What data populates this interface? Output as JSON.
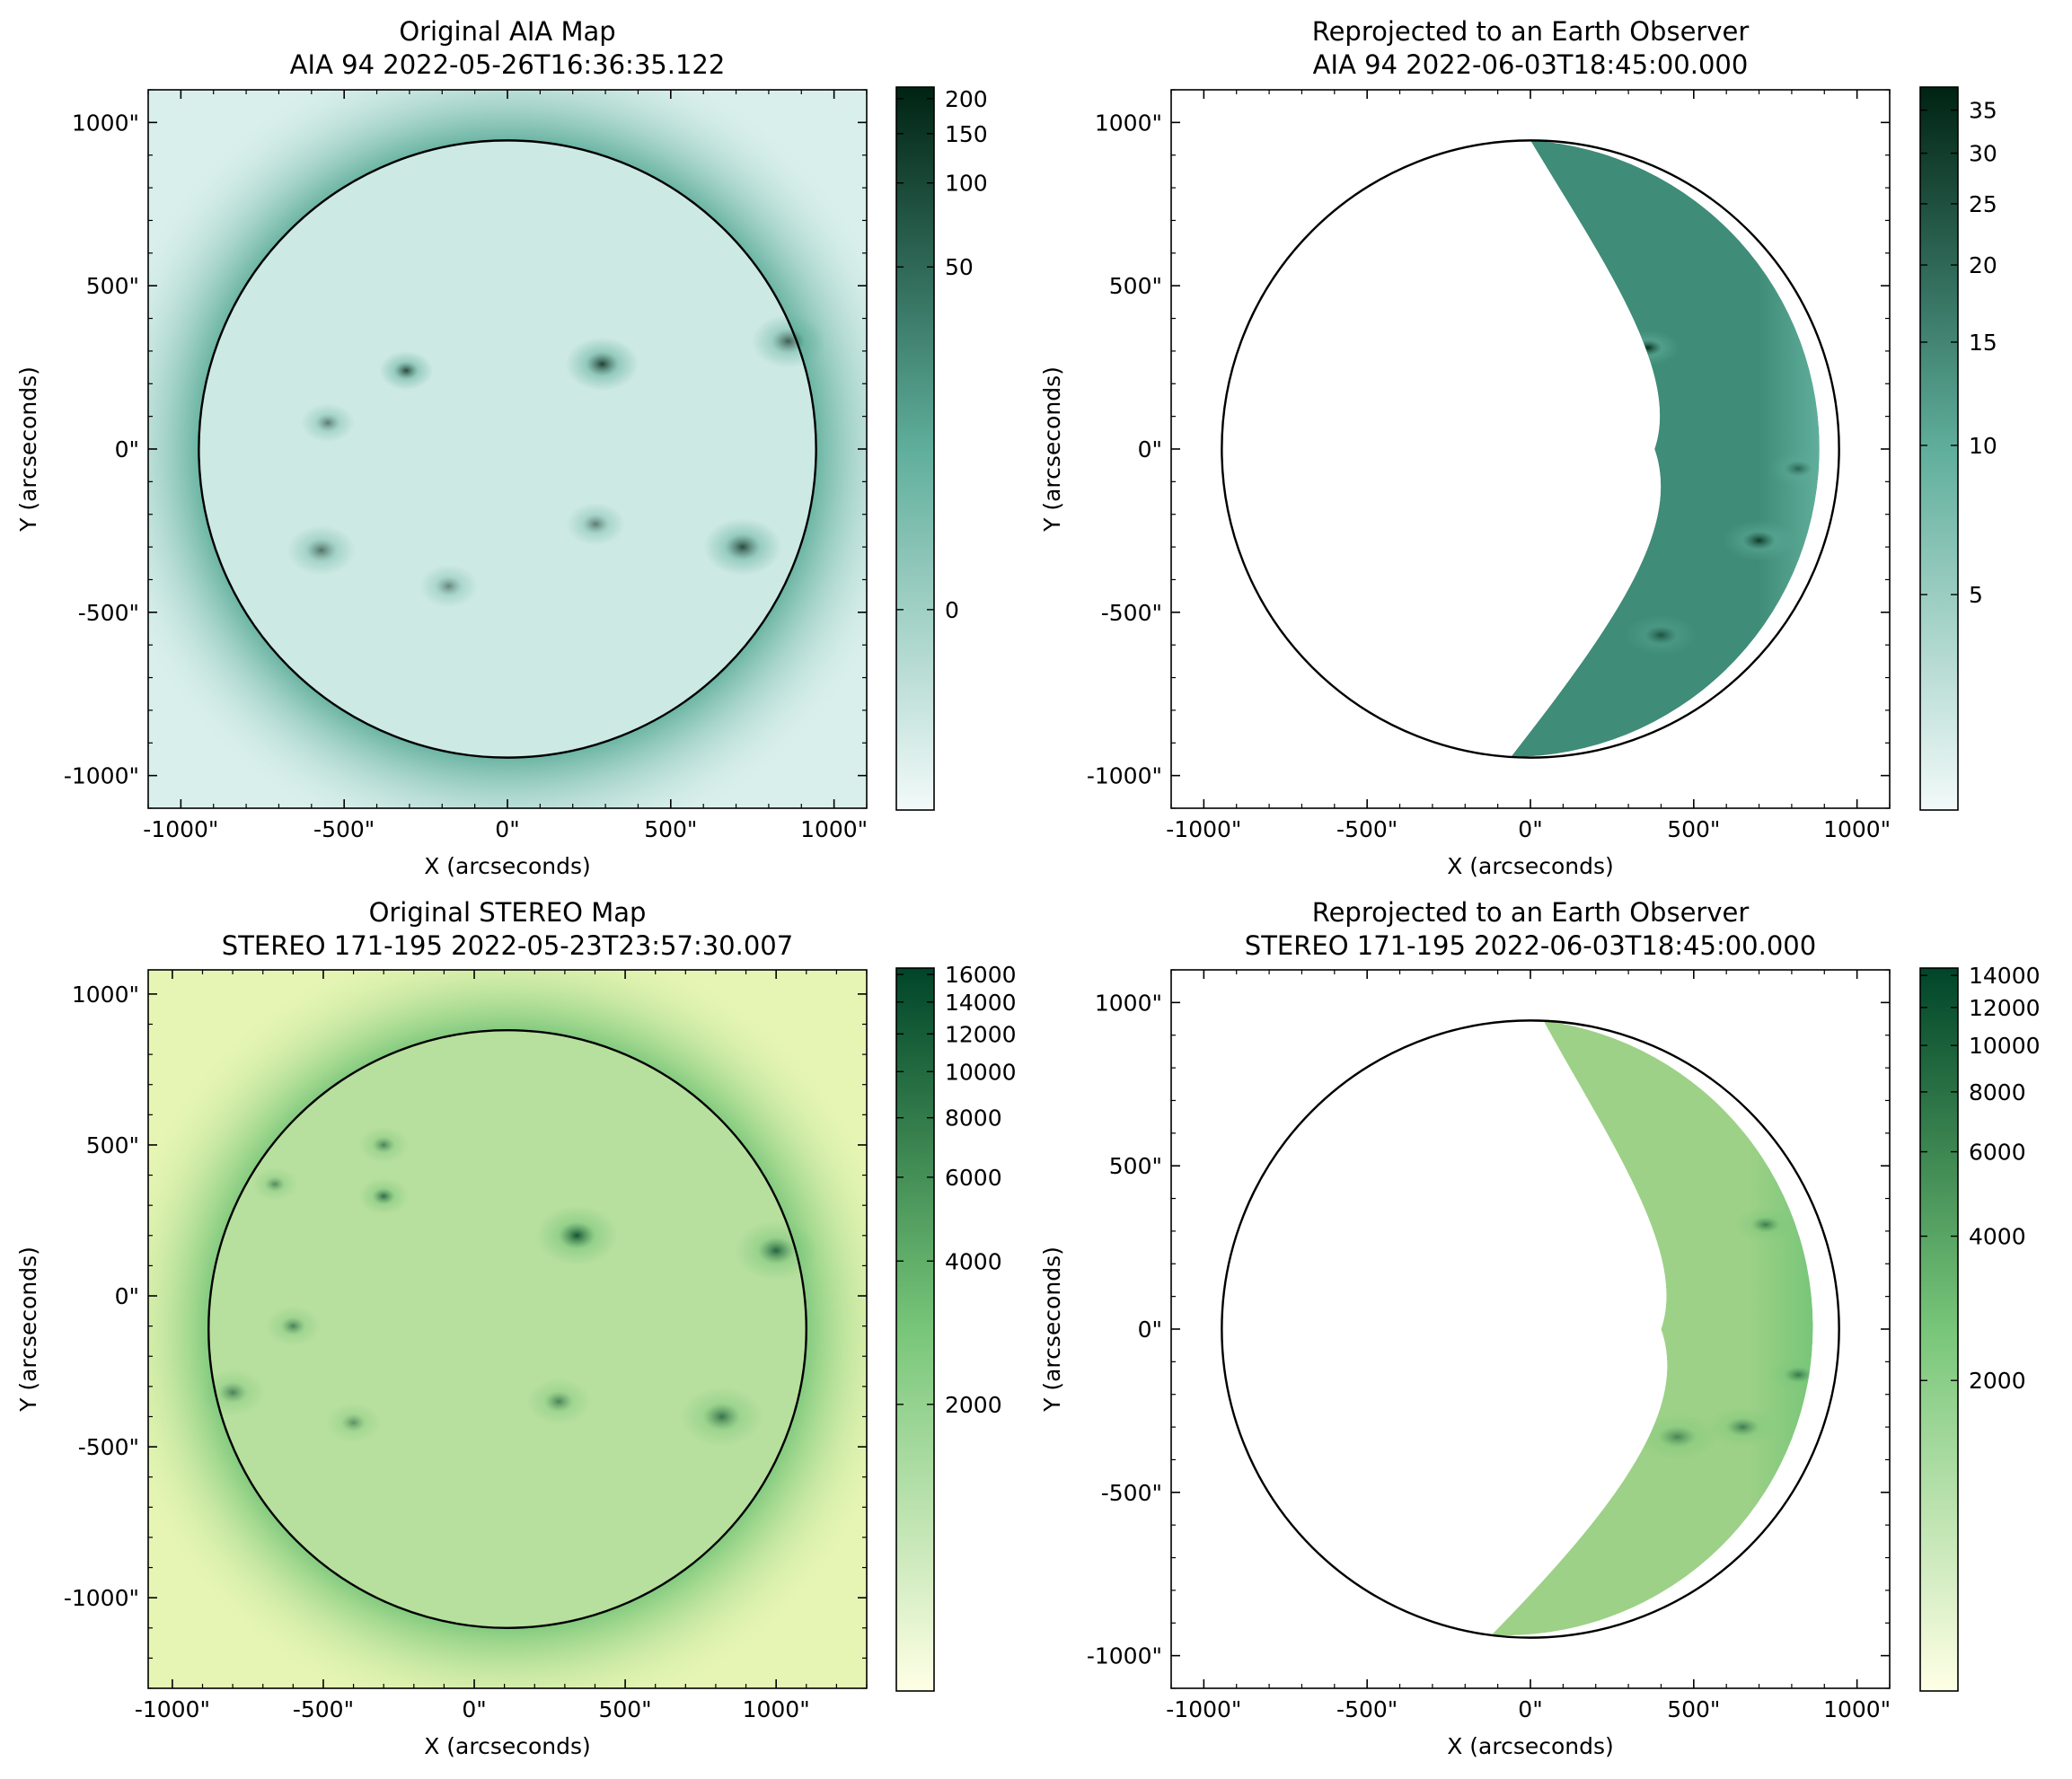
{
  "chart_data": [
    {
      "type": "heatmap",
      "title": [
        "Original AIA Map",
        "AIA 94 2022-05-26T16:36:35.122"
      ],
      "xlabel": "X (arcseconds)",
      "ylabel": "Y (arcseconds)",
      "xlim": [
        -1100,
        1100
      ],
      "ylim": [
        -1100,
        1100
      ],
      "xticks": [
        -1000,
        -500,
        0,
        500,
        1000
      ],
      "yticks": [
        -1000,
        -500,
        0,
        500,
        1000
      ],
      "xtick_labels": [
        "-1000\"",
        "-500\"",
        "0\"",
        "500\"",
        "1000\""
      ],
      "ytick_labels": [
        "-1000\"",
        "-500\"",
        "0\"",
        "500\"",
        "1000\""
      ],
      "image": "full solar disk, limb circle",
      "limb": {
        "cx": 0,
        "cy": 0,
        "r": 945
      },
      "active_regions": [
        {
          "x": -310,
          "y": 240,
          "s": 55,
          "w": 0.8
        },
        {
          "x": 290,
          "y": 260,
          "s": 75,
          "w": 0.85
        },
        {
          "x": 860,
          "y": 330,
          "s": 75,
          "w": 0.7
        },
        {
          "x": -550,
          "y": 80,
          "s": 55,
          "w": 0.55
        },
        {
          "x": -570,
          "y": -310,
          "s": 70,
          "w": 0.6
        },
        {
          "x": 720,
          "y": -300,
          "s": 80,
          "w": 0.8
        },
        {
          "x": 270,
          "y": -230,
          "s": 60,
          "w": 0.55
        },
        {
          "x": -180,
          "y": -420,
          "s": 60,
          "w": 0.5
        }
      ],
      "colormap": "sdoaia94",
      "colors": {
        "low": "#f2faf9",
        "mid": "#5fae9b",
        "high": "#002313",
        "disk": "#cde9e4",
        "background": "#d9efec"
      },
      "colorbar": {
        "scale": "asinh",
        "ticks": [
          0,
          50,
          100,
          150,
          200
        ],
        "tick_labels": [
          "0",
          "50",
          "100",
          "150",
          "200"
        ],
        "range": [
          -15,
          220
        ]
      }
    },
    {
      "type": "heatmap",
      "title": [
        "Reprojected to an Earth Observer",
        "AIA 94 2022-06-03T18:45:00.000"
      ],
      "xlabel": "X (arcseconds)",
      "ylabel": "Y (arcseconds)",
      "xlim": [
        -1100,
        1100
      ],
      "ylim": [
        -1100,
        1100
      ],
      "xticks": [
        -1000,
        -500,
        0,
        500,
        1000
      ],
      "yticks": [
        -1000,
        -500,
        0,
        500,
        1000
      ],
      "xtick_labels": [
        "-1000\"",
        "-500\"",
        "0\"",
        "500\"",
        "1000\""
      ],
      "ytick_labels": [
        "-1000\"",
        "-500\"",
        "0\"",
        "500\"",
        "1000\""
      ],
      "image": "crescent of reprojected data on west limb",
      "limb": {
        "cx": 0,
        "cy": 0,
        "r": 945
      },
      "crescent_inner": {
        "x0": 0,
        "x1": 380,
        "xend": -60
      },
      "active_regions": [
        {
          "x": 360,
          "y": 310,
          "s": 60,
          "w": 0.9
        },
        {
          "x": 700,
          "y": -280,
          "s": 70,
          "w": 0.8
        },
        {
          "x": 400,
          "y": -570,
          "s": 70,
          "w": 0.55
        },
        {
          "x": 820,
          "y": -60,
          "s": 60,
          "w": 0.5
        }
      ],
      "colormap": "sdoaia94",
      "colors": {
        "low": "#f2faf9",
        "mid": "#5fae9b",
        "high": "#002313",
        "disk": "#3f8c78",
        "background": "#ffffff"
      },
      "colorbar": {
        "scale": "asinh",
        "ticks": [
          5,
          10,
          15,
          20,
          25,
          30,
          35
        ],
        "tick_labels": [
          "5",
          "10",
          "15",
          "20",
          "25",
          "30",
          "35"
        ],
        "range": [
          0,
          38
        ]
      }
    },
    {
      "type": "heatmap",
      "title": [
        "Original STEREO Map",
        "STEREO 171-195 2022-05-23T23:57:30.007"
      ],
      "xlabel": "X (arcseconds)",
      "ylabel": "Y (arcseconds)",
      "xlim": [
        -1080,
        1300
      ],
      "ylim": [
        -1300,
        1080
      ],
      "xticks": [
        -1000,
        -500,
        0,
        500,
        1000
      ],
      "yticks": [
        -1000,
        -500,
        0,
        500,
        1000
      ],
      "xtick_labels": [
        "-1000\"",
        "-500\"",
        "0\"",
        "500\"",
        "1000\""
      ],
      "ytick_labels": [
        "-1000\"",
        "-500\"",
        "0\"",
        "500\"",
        "1000\""
      ],
      "image": "full solar disk, limb circle",
      "limb": {
        "cx": 110,
        "cy": -110,
        "r": 990
      },
      "active_regions": [
        {
          "x": -300,
          "y": 500,
          "s": 55,
          "w": 0.6
        },
        {
          "x": -660,
          "y": 370,
          "s": 50,
          "w": 0.55
        },
        {
          "x": -300,
          "y": 330,
          "s": 55,
          "w": 0.75
        },
        {
          "x": 340,
          "y": 200,
          "s": 90,
          "w": 0.9
        },
        {
          "x": 1000,
          "y": 150,
          "s": 90,
          "w": 0.8
        },
        {
          "x": -600,
          "y": -100,
          "s": 60,
          "w": 0.6
        },
        {
          "x": -800,
          "y": -320,
          "s": 70,
          "w": 0.6
        },
        {
          "x": 820,
          "y": -400,
          "s": 90,
          "w": 0.7
        },
        {
          "x": 280,
          "y": -350,
          "s": 70,
          "w": 0.6
        },
        {
          "x": -400,
          "y": -420,
          "s": 60,
          "w": 0.5
        }
      ],
      "colormap": "YlGn",
      "colors": {
        "low": "#ffffe5",
        "mid": "#78c679",
        "high": "#004529",
        "disk": "#b7df9e",
        "background": "#e6f5b3"
      },
      "colorbar": {
        "scale": "log",
        "ticks": [
          2000,
          4000,
          6000,
          8000,
          10000,
          12000,
          14000,
          16000
        ],
        "tick_labels": [
          "2000",
          "4000",
          "6000",
          "8000",
          "10000",
          "12000",
          "14000",
          "16000"
        ],
        "range": [
          500,
          16500
        ]
      }
    },
    {
      "type": "heatmap",
      "title": [
        "Reprojected to an Earth Observer",
        "STEREO 171-195 2022-06-03T18:45:00.000"
      ],
      "xlabel": "X (arcseconds)",
      "ylabel": "Y (arcseconds)",
      "xlim": [
        -1100,
        1100
      ],
      "ylim": [
        -1100,
        1100
      ],
      "xticks": [
        -1000,
        -500,
        0,
        500,
        1000
      ],
      "yticks": [
        -1000,
        -500,
        0,
        500,
        1000
      ],
      "xtick_labels": [
        "-1000\"",
        "-500\"",
        "0\"",
        "500\"",
        "1000\""
      ],
      "ytick_labels": [
        "-1000\"",
        "-500\"",
        "0\"",
        "500\"",
        "1000\""
      ],
      "image": "crescent of reprojected data on west limb",
      "limb": {
        "cx": 0,
        "cy": 0,
        "r": 945
      },
      "crescent_inner": {
        "x0": 40,
        "x1": 400,
        "xend": -120
      },
      "active_regions": [
        {
          "x": 720,
          "y": 320,
          "s": 60,
          "w": 0.6
        },
        {
          "x": 820,
          "y": -140,
          "s": 60,
          "w": 0.6
        },
        {
          "x": 650,
          "y": -300,
          "s": 70,
          "w": 0.6
        },
        {
          "x": 450,
          "y": -330,
          "s": 80,
          "w": 0.55
        }
      ],
      "colormap": "YlGn",
      "colors": {
        "low": "#ffffe5",
        "mid": "#78c679",
        "high": "#004529",
        "disk": "#9dd187",
        "background": "#ffffff"
      },
      "colorbar": {
        "scale": "log",
        "ticks": [
          2000,
          4000,
          6000,
          8000,
          10000,
          12000,
          14000
        ],
        "tick_labels": [
          "2000",
          "4000",
          "6000",
          "8000",
          "10000",
          "12000",
          "14000"
        ],
        "range": [
          450,
          14500
        ]
      }
    }
  ]
}
